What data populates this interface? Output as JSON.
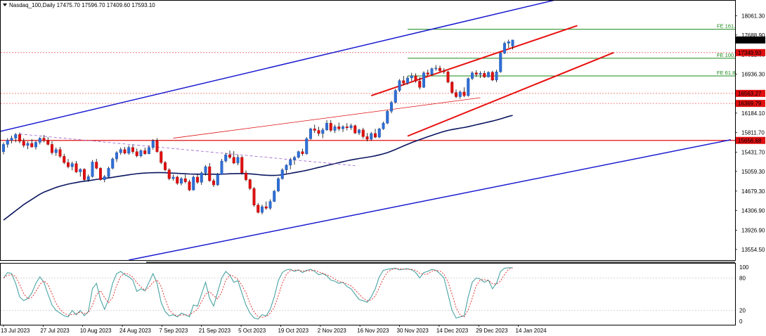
{
  "header": {
    "title": "Nasdaq_100,Daily  17475.70 17596.70 17409.60 17593.10"
  },
  "colors": {
    "bull": "#2f6fd6",
    "bear": "#e01010",
    "wick": "#000000",
    "trend_blue": "#1a1ad0",
    "channel_red": "#e81010",
    "ma": "#0a1560",
    "fib_green": "#1a8a1a",
    "hline_red": "#e01010",
    "dotted_red": "#f06060",
    "purple_dash": "#9a5ad0",
    "stoch_main": "#4aa3a3",
    "stoch_signal": "#e02020",
    "axis_tag_bg": "#e01010"
  },
  "chart_data": {
    "type": "candlestick",
    "symbol": "Nasdaq_100",
    "timeframe": "Daily",
    "ohlc_header": {
      "open": 17475.7,
      "high": 17596.7,
      "low": 17409.6,
      "close": 17593.1
    },
    "price_axis": {
      "ylim": [
        13350,
        18350
      ],
      "ticks": [
        "18061.30",
        "17688.90",
        "17312.60",
        "16936.30",
        "16560.00",
        "16184.10",
        "15811.70",
        "15431.70",
        "15059.30",
        "14679.30",
        "14306.90",
        "13926.90",
        "13554.50"
      ]
    },
    "date_axis": {
      "ticks": [
        "13 Jul 2023",
        "27 Jul 2023",
        "10 Aug 2023",
        "24 Aug 2023",
        "7 Sep 2023",
        "21 Sep 2023",
        "5 Oct 2023",
        "19 Oct 2023",
        "2 Nov 2023",
        "16 Nov 2023",
        "30 Nov 2023",
        "14 Dec 2023",
        "29 Dec 2023",
        "14 Jan 2024"
      ]
    },
    "candles": [
      [
        15440,
        15620,
        15390,
        15580
      ],
      [
        15580,
        15700,
        15520,
        15660
      ],
      [
        15660,
        15750,
        15600,
        15700
      ],
      [
        15700,
        15800,
        15620,
        15770
      ],
      [
        15770,
        15810,
        15600,
        15640
      ],
      [
        15640,
        15700,
        15520,
        15560
      ],
      [
        15560,
        15640,
        15490,
        15600
      ],
      [
        15600,
        15680,
        15520,
        15530
      ],
      [
        15530,
        15650,
        15480,
        15620
      ],
      [
        15620,
        15720,
        15580,
        15700
      ],
      [
        15700,
        15760,
        15620,
        15650
      ],
      [
        15650,
        15720,
        15560,
        15580
      ],
      [
        15580,
        15640,
        15380,
        15420
      ],
      [
        15420,
        15520,
        15360,
        15480
      ],
      [
        15480,
        15530,
        15320,
        15350
      ],
      [
        15350,
        15400,
        15200,
        15230
      ],
      [
        15230,
        15300,
        15120,
        15150
      ],
      [
        15150,
        15250,
        15080,
        15210
      ],
      [
        15210,
        15260,
        15030,
        15050
      ],
      [
        15050,
        15120,
        14960,
        15100
      ],
      [
        15100,
        15120,
        14870,
        14900
      ],
      [
        14900,
        15000,
        14860,
        14960
      ],
      [
        14960,
        15280,
        14940,
        15240
      ],
      [
        15240,
        15300,
        15100,
        15120
      ],
      [
        15120,
        15140,
        14880,
        14900
      ],
      [
        14900,
        14990,
        14850,
        14960
      ],
      [
        14960,
        15150,
        14940,
        15120
      ],
      [
        15120,
        15330,
        15100,
        15300
      ],
      [
        15300,
        15450,
        15240,
        15420
      ],
      [
        15420,
        15520,
        15380,
        15480
      ],
      [
        15480,
        15530,
        15390,
        15410
      ],
      [
        15410,
        15560,
        15380,
        15520
      ],
      [
        15520,
        15580,
        15400,
        15440
      ],
      [
        15440,
        15500,
        15330,
        15360
      ],
      [
        15360,
        15480,
        15330,
        15460
      ],
      [
        15460,
        15520,
        15380,
        15400
      ],
      [
        15400,
        15560,
        15390,
        15520
      ],
      [
        15520,
        15680,
        15480,
        15650
      ],
      [
        15650,
        15700,
        15420,
        15440
      ],
      [
        15440,
        15460,
        15200,
        15230
      ],
      [
        15230,
        15260,
        15060,
        15090
      ],
      [
        15090,
        15120,
        14890,
        14920
      ],
      [
        14920,
        15000,
        14880,
        14950
      ],
      [
        14950,
        14980,
        14800,
        14830
      ],
      [
        14830,
        14950,
        14790,
        14920
      ],
      [
        14920,
        15000,
        14830,
        14860
      ],
      [
        14860,
        14900,
        14680,
        14700
      ],
      [
        14700,
        14980,
        14690,
        14950
      ],
      [
        14950,
        15020,
        14820,
        14850
      ],
      [
        14850,
        15060,
        14800,
        15030
      ],
      [
        15030,
        15180,
        14980,
        15150
      ],
      [
        15150,
        15220,
        14860,
        14880
      ],
      [
        14880,
        14920,
        14760,
        14800
      ],
      [
        14800,
        15030,
        14780,
        15000
      ],
      [
        15000,
        15300,
        14990,
        15260
      ],
      [
        15260,
        15420,
        15230,
        15380
      ],
      [
        15380,
        15460,
        15300,
        15330
      ],
      [
        15330,
        15450,
        15200,
        15220
      ],
      [
        15220,
        15380,
        15180,
        15330
      ],
      [
        15330,
        15360,
        15000,
        15030
      ],
      [
        15030,
        15080,
        14870,
        14900
      ],
      [
        14900,
        14920,
        14700,
        14730
      ],
      [
        14730,
        14760,
        14380,
        14410
      ],
      [
        14410,
        14450,
        14250,
        14270
      ],
      [
        14270,
        14420,
        14230,
        14380
      ],
      [
        14380,
        14480,
        14320,
        14350
      ],
      [
        14350,
        14520,
        14320,
        14480
      ],
      [
        14480,
        14700,
        14470,
        14680
      ],
      [
        14680,
        14950,
        14660,
        14920
      ],
      [
        14920,
        15120,
        14900,
        15090
      ],
      [
        15090,
        15200,
        15020,
        15180
      ],
      [
        15180,
        15320,
        15100,
        15280
      ],
      [
        15280,
        15360,
        15190,
        15330
      ],
      [
        15330,
        15460,
        15310,
        15440
      ],
      [
        15440,
        15500,
        15360,
        15400
      ],
      [
        15400,
        15720,
        15380,
        15690
      ],
      [
        15690,
        15900,
        15670,
        15880
      ],
      [
        15880,
        15960,
        15800,
        15850
      ],
      [
        15850,
        15920,
        15740,
        15790
      ],
      [
        15790,
        15900,
        15700,
        15860
      ],
      [
        15860,
        16050,
        15840,
        15990
      ],
      [
        15990,
        16050,
        15820,
        15850
      ],
      [
        15850,
        15960,
        15800,
        15920
      ],
      [
        15920,
        16000,
        15840,
        15880
      ],
      [
        15880,
        15950,
        15820,
        15920
      ],
      [
        15920,
        15990,
        15850,
        15900
      ],
      [
        15900,
        15980,
        15860,
        15940
      ],
      [
        15940,
        15960,
        15780,
        15800
      ],
      [
        15800,
        15880,
        15760,
        15860
      ],
      [
        15860,
        15900,
        15690,
        15730
      ],
      [
        15730,
        15800,
        15640,
        15680
      ],
      [
        15680,
        15820,
        15650,
        15790
      ],
      [
        15790,
        15880,
        15700,
        15720
      ],
      [
        15720,
        15900,
        15700,
        15880
      ],
      [
        15880,
        16020,
        15860,
        15990
      ],
      [
        15990,
        16240,
        15970,
        16220
      ],
      [
        16220,
        16420,
        16180,
        16390
      ],
      [
        16390,
        16650,
        16370,
        16620
      ],
      [
        16620,
        16840,
        16590,
        16810
      ],
      [
        16810,
        16900,
        16720,
        16760
      ],
      [
        16760,
        16900,
        16730,
        16860
      ],
      [
        16860,
        16960,
        16800,
        16900
      ],
      [
        16900,
        16950,
        16770,
        16800
      ],
      [
        16800,
        16880,
        16640,
        16680
      ],
      [
        16680,
        16990,
        16670,
        16960
      ],
      [
        16960,
        17020,
        16900,
        16930
      ],
      [
        16930,
        17060,
        16910,
        17040
      ],
      [
        17040,
        17110,
        17000,
        17050
      ],
      [
        17050,
        17100,
        16980,
        17000
      ],
      [
        17000,
        17050,
        16940,
        16980
      ],
      [
        16980,
        17000,
        16760,
        16780
      ],
      [
        16780,
        16800,
        16550,
        16580
      ],
      [
        16580,
        16640,
        16470,
        16500
      ],
      [
        16500,
        16620,
        16460,
        16590
      ],
      [
        16590,
        16680,
        16490,
        16520
      ],
      [
        16520,
        16870,
        16500,
        16850
      ],
      [
        16850,
        16990,
        16820,
        16960
      ],
      [
        16960,
        17010,
        16880,
        16930
      ],
      [
        16930,
        16990,
        16860,
        16950
      ],
      [
        16950,
        17000,
        16860,
        16880
      ],
      [
        16880,
        16990,
        16870,
        16970
      ],
      [
        16970,
        17000,
        16800,
        16820
      ],
      [
        16820,
        17020,
        16780,
        16980
      ],
      [
        16980,
        17360,
        16960,
        17340
      ],
      [
        17340,
        17560,
        17320,
        17530
      ],
      [
        17530,
        17600,
        17440,
        17560
      ],
      [
        17475.7,
        17596.7,
        17409.6,
        17593.1
      ]
    ],
    "moving_average": [
      14120,
      14180,
      14240,
      14300,
      14360,
      14420,
      14470,
      14520,
      14570,
      14620,
      14660,
      14690,
      14720,
      14750,
      14775,
      14795,
      14815,
      14830,
      14845,
      14860,
      14870,
      14880,
      14892,
      14905,
      14915,
      14925,
      14935,
      14945,
      14958,
      14970,
      14982,
      14994,
      15005,
      15015,
      15022,
      15028,
      15032,
      15035,
      15036,
      15036,
      15034,
      15030,
      15026,
      15022,
      15018,
      15014,
      15010,
      15008,
      15006,
      15005,
      15006,
      15006,
      15005,
      15004,
      15006,
      15010,
      15014,
      15016,
      15018,
      15018,
      15016,
      15012,
      15006,
      14998,
      14990,
      14985,
      14982,
      14982,
      14986,
      14995,
      15008,
      15022,
      15036,
      15050,
      15064,
      15080,
      15098,
      15118,
      15136,
      15154,
      15174,
      15192,
      15210,
      15228,
      15246,
      15264,
      15280,
      15294,
      15308,
      15320,
      15332,
      15345,
      15360,
      15378,
      15398,
      15422,
      15450,
      15482,
      15516,
      15550,
      15582,
      15614,
      15644,
      15672,
      15700,
      15728,
      15754,
      15780,
      15806,
      15830,
      15850,
      15866,
      15880,
      15894,
      15906,
      15922,
      15940,
      15958,
      15976,
      15994,
      16012,
      16030,
      16050,
      16072,
      16096,
      16120,
      16140
    ],
    "stochastic": {
      "k": [
        80,
        90,
        88,
        70,
        45,
        38,
        42,
        52,
        70,
        82,
        72,
        50,
        30,
        20,
        15,
        10,
        8,
        20,
        12,
        20,
        10,
        18,
        60,
        70,
        40,
        22,
        40,
        70,
        88,
        92,
        86,
        82,
        76,
        55,
        60,
        56,
        72,
        88,
        70,
        35,
        18,
        10,
        12,
        8,
        15,
        12,
        8,
        30,
        28,
        50,
        72,
        42,
        28,
        54,
        80,
        92,
        85,
        72,
        75,
        52,
        30,
        15,
        6,
        4,
        12,
        10,
        22,
        45,
        75,
        90,
        95,
        96,
        92,
        95,
        90,
        94,
        96,
        92,
        86,
        88,
        84,
        76,
        74,
        70,
        72,
        64,
        60,
        50,
        40,
        38,
        35,
        45,
        60,
        82,
        94,
        96,
        97,
        98,
        95,
        96,
        97,
        95,
        90,
        80,
        90,
        92,
        96,
        94,
        88,
        80,
        50,
        20,
        6,
        8,
        10,
        45,
        72,
        80,
        78,
        72,
        76,
        60,
        70,
        92,
        98,
        99,
        99
      ],
      "levels": [
        "100",
        "80",
        "20",
        "0"
      ],
      "ylim": [
        0,
        100
      ]
    },
    "channel_lines": [
      {
        "name": "upper-blue-trend",
        "color": "#1a1ad0",
        "points": [
          [
            -3,
            15790
          ],
          [
            145,
            18520
          ]
        ]
      },
      {
        "name": "lower-blue-trend",
        "color": "#1a1ad0",
        "points": [
          [
            31,
            13350
          ],
          [
            180,
            15670
          ]
        ]
      },
      {
        "name": "red-channel-top",
        "color": "#e81010",
        "points": [
          [
            91,
            16520
          ],
          [
            142,
            17870
          ]
        ]
      },
      {
        "name": "red-channel-bottom",
        "color": "#e81010",
        "points": [
          [
            100,
            15740
          ],
          [
            151,
            17350
          ]
        ]
      }
    ],
    "fib_levels": [
      {
        "label": "FE 161.8",
        "price": 17800
      },
      {
        "label": "FE 100.0",
        "price": 17240
      },
      {
        "label": "FE 61.8",
        "price": 16900
      }
    ],
    "hlines": [
      {
        "price": 15656.68,
        "label": "15656.68",
        "style": "solid"
      },
      {
        "price": 16369.79,
        "label": "16369.79",
        "style": "dotted"
      },
      {
        "price": 16563.27,
        "label": "16563.27",
        "style": "dotted"
      },
      {
        "price": 17349.93,
        "label": "17349.93",
        "style": "dotted"
      }
    ],
    "current_price": "17593.10",
    "thin_lines": [
      {
        "name": "purple-dashed-trend",
        "color": "#9a5ad0",
        "points": [
          [
            4,
            15780
          ],
          [
            87,
            15170
          ]
        ]
      },
      {
        "name": "thin-red-trend",
        "color": "#e01010",
        "points": [
          [
            42,
            15700
          ],
          [
            118,
            16480
          ]
        ]
      }
    ]
  }
}
